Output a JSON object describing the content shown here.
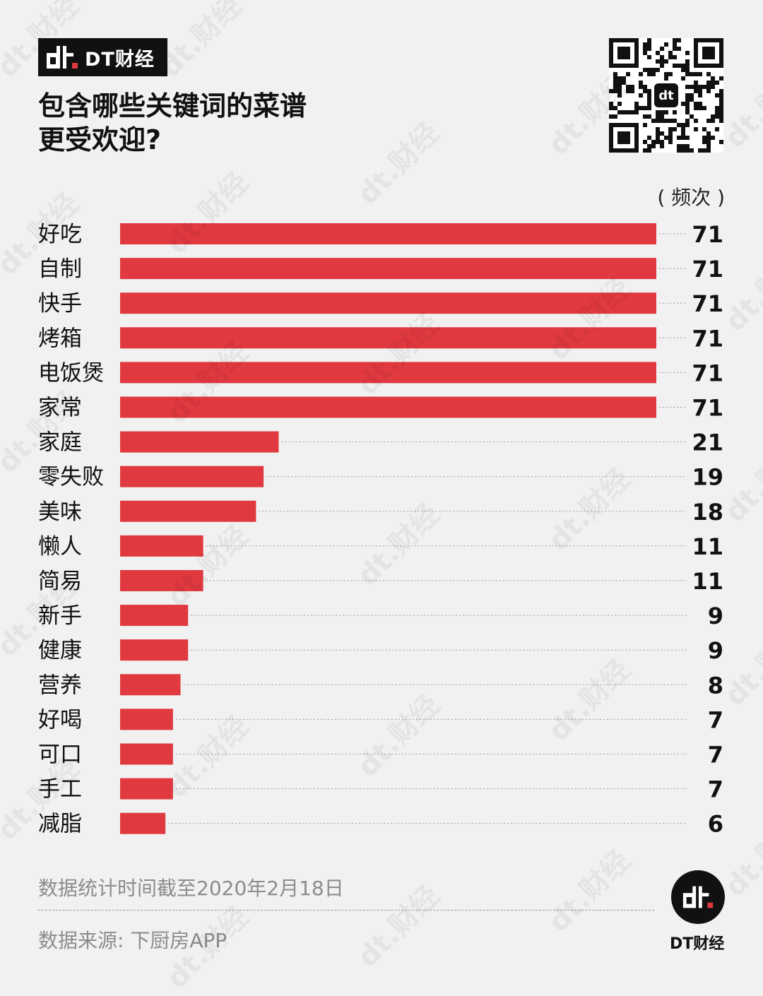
{
  "brand": {
    "name": "DT财经",
    "logo_text": "dt"
  },
  "title_lines": [
    "包含哪些关键词的菜谱",
    "更受欢迎?"
  ],
  "unit_label": "( 频次 )",
  "footer": {
    "note": "数据统计时间截至2020年2月18日",
    "source": "数据来源: 下厨房APP"
  },
  "logo_caption": "DT财经",
  "watermark_text": "dt.财经",
  "colors": {
    "bar": "#e0393f",
    "background": "#f1f1f1",
    "dark": "#111111"
  },
  "chart_data": {
    "type": "bar",
    "orientation": "horizontal",
    "title": "包含哪些关键词的菜谱更受欢迎?",
    "unit": "频次",
    "categories": [
      "好吃",
      "自制",
      "快手",
      "烤箱",
      "电饭煲",
      "家常",
      "家庭",
      "零失败",
      "美味",
      "懒人",
      "简易",
      "新手",
      "健康",
      "营养",
      "好喝",
      "可口",
      "手工",
      "减脂"
    ],
    "values": [
      71,
      71,
      71,
      71,
      71,
      71,
      21,
      19,
      18,
      11,
      11,
      9,
      9,
      8,
      7,
      7,
      7,
      6
    ],
    "xlim": [
      0,
      71
    ],
    "grid": false,
    "legend": "none",
    "data_labels": true
  }
}
